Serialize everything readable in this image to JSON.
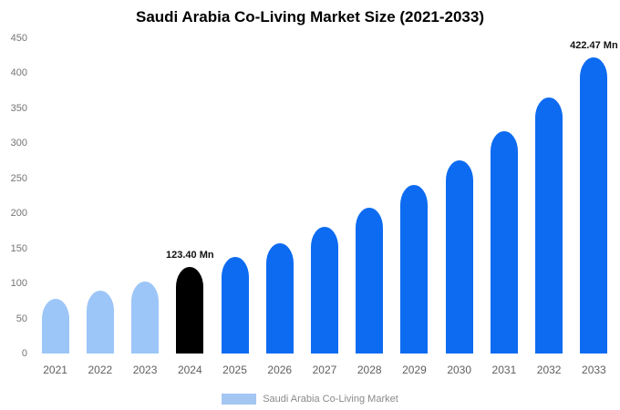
{
  "title": "Saudi Arabia Co-Living Market Size (2021-2033)",
  "colors": {
    "past": "#9cc6f7",
    "current": "#000000",
    "forecast": "#0d6bf1"
  },
  "legend": {
    "label": "Saudi Arabia Co-Living Market",
    "swatch_color": "#a4c6f2"
  },
  "chart_data": {
    "type": "bar",
    "title": "Saudi Arabia Co-Living Market Size (2021-2033)",
    "xlabel": "",
    "ylabel": "",
    "categories": [
      "2021",
      "2022",
      "2023",
      "2024",
      "2025",
      "2026",
      "2027",
      "2028",
      "2029",
      "2030",
      "2031",
      "2032",
      "2033"
    ],
    "values": [
      78,
      90,
      103,
      123.4,
      138,
      158,
      181,
      208,
      240,
      276,
      317,
      365,
      422.47
    ],
    "bar_color_keys": [
      "past",
      "past",
      "past",
      "current",
      "forecast",
      "forecast",
      "forecast",
      "forecast",
      "forecast",
      "forecast",
      "forecast",
      "forecast",
      "forecast"
    ],
    "data_labels": [
      null,
      null,
      null,
      "123.40 Mn",
      null,
      null,
      null,
      null,
      null,
      null,
      null,
      null,
      "422.47 Mn"
    ],
    "ylim": [
      0,
      450
    ],
    "yticks": [
      0,
      50,
      100,
      150,
      200,
      250,
      300,
      350,
      400,
      450
    ],
    "grid": false,
    "legend_position": "bottom",
    "series_name": "Saudi Arabia Co-Living Market"
  }
}
